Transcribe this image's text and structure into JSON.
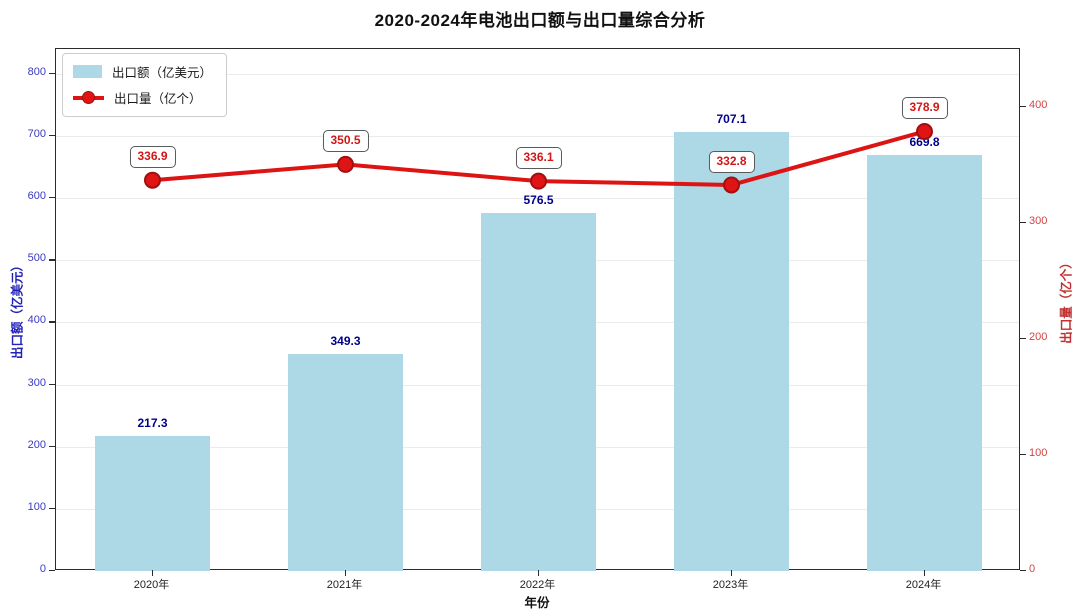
{
  "chart_data": {
    "type": "bar+line",
    "title": "2020-2024年电池出口额与出口量综合分析",
    "categories": [
      "2020年",
      "2021年",
      "2022年",
      "2023年",
      "2024年"
    ],
    "series": [
      {
        "name": "出口额（亿美元）",
        "type": "bar",
        "axis": "left",
        "values": [
          217.3,
          349.3,
          576.5,
          707.1,
          669.8
        ],
        "color": "#ADD8E6",
        "value_label_color": "#00008B"
      },
      {
        "name": "出口量（亿个）",
        "type": "line",
        "axis": "right",
        "values": [
          336.9,
          350.5,
          336.1,
          332.8,
          378.9
        ],
        "color": "#DC1414",
        "marker_fill": "#E01414",
        "marker_edge": "#A01010",
        "value_label_color": "#D01818"
      }
    ],
    "xlabel": "年份",
    "left_axis": {
      "label": "出口额（亿美元）",
      "ticks": [
        0,
        100,
        200,
        300,
        400,
        500,
        600,
        700,
        800
      ],
      "ylim": [
        0,
        840
      ],
      "tick_color": "#3A3AC0"
    },
    "right_axis": {
      "label": "出口量（亿个）",
      "ticks": [
        0,
        100,
        200,
        300,
        400
      ],
      "ylim": [
        0,
        450
      ],
      "tick_color": "#D04545"
    },
    "grid": true,
    "legend_position": "top-left"
  }
}
